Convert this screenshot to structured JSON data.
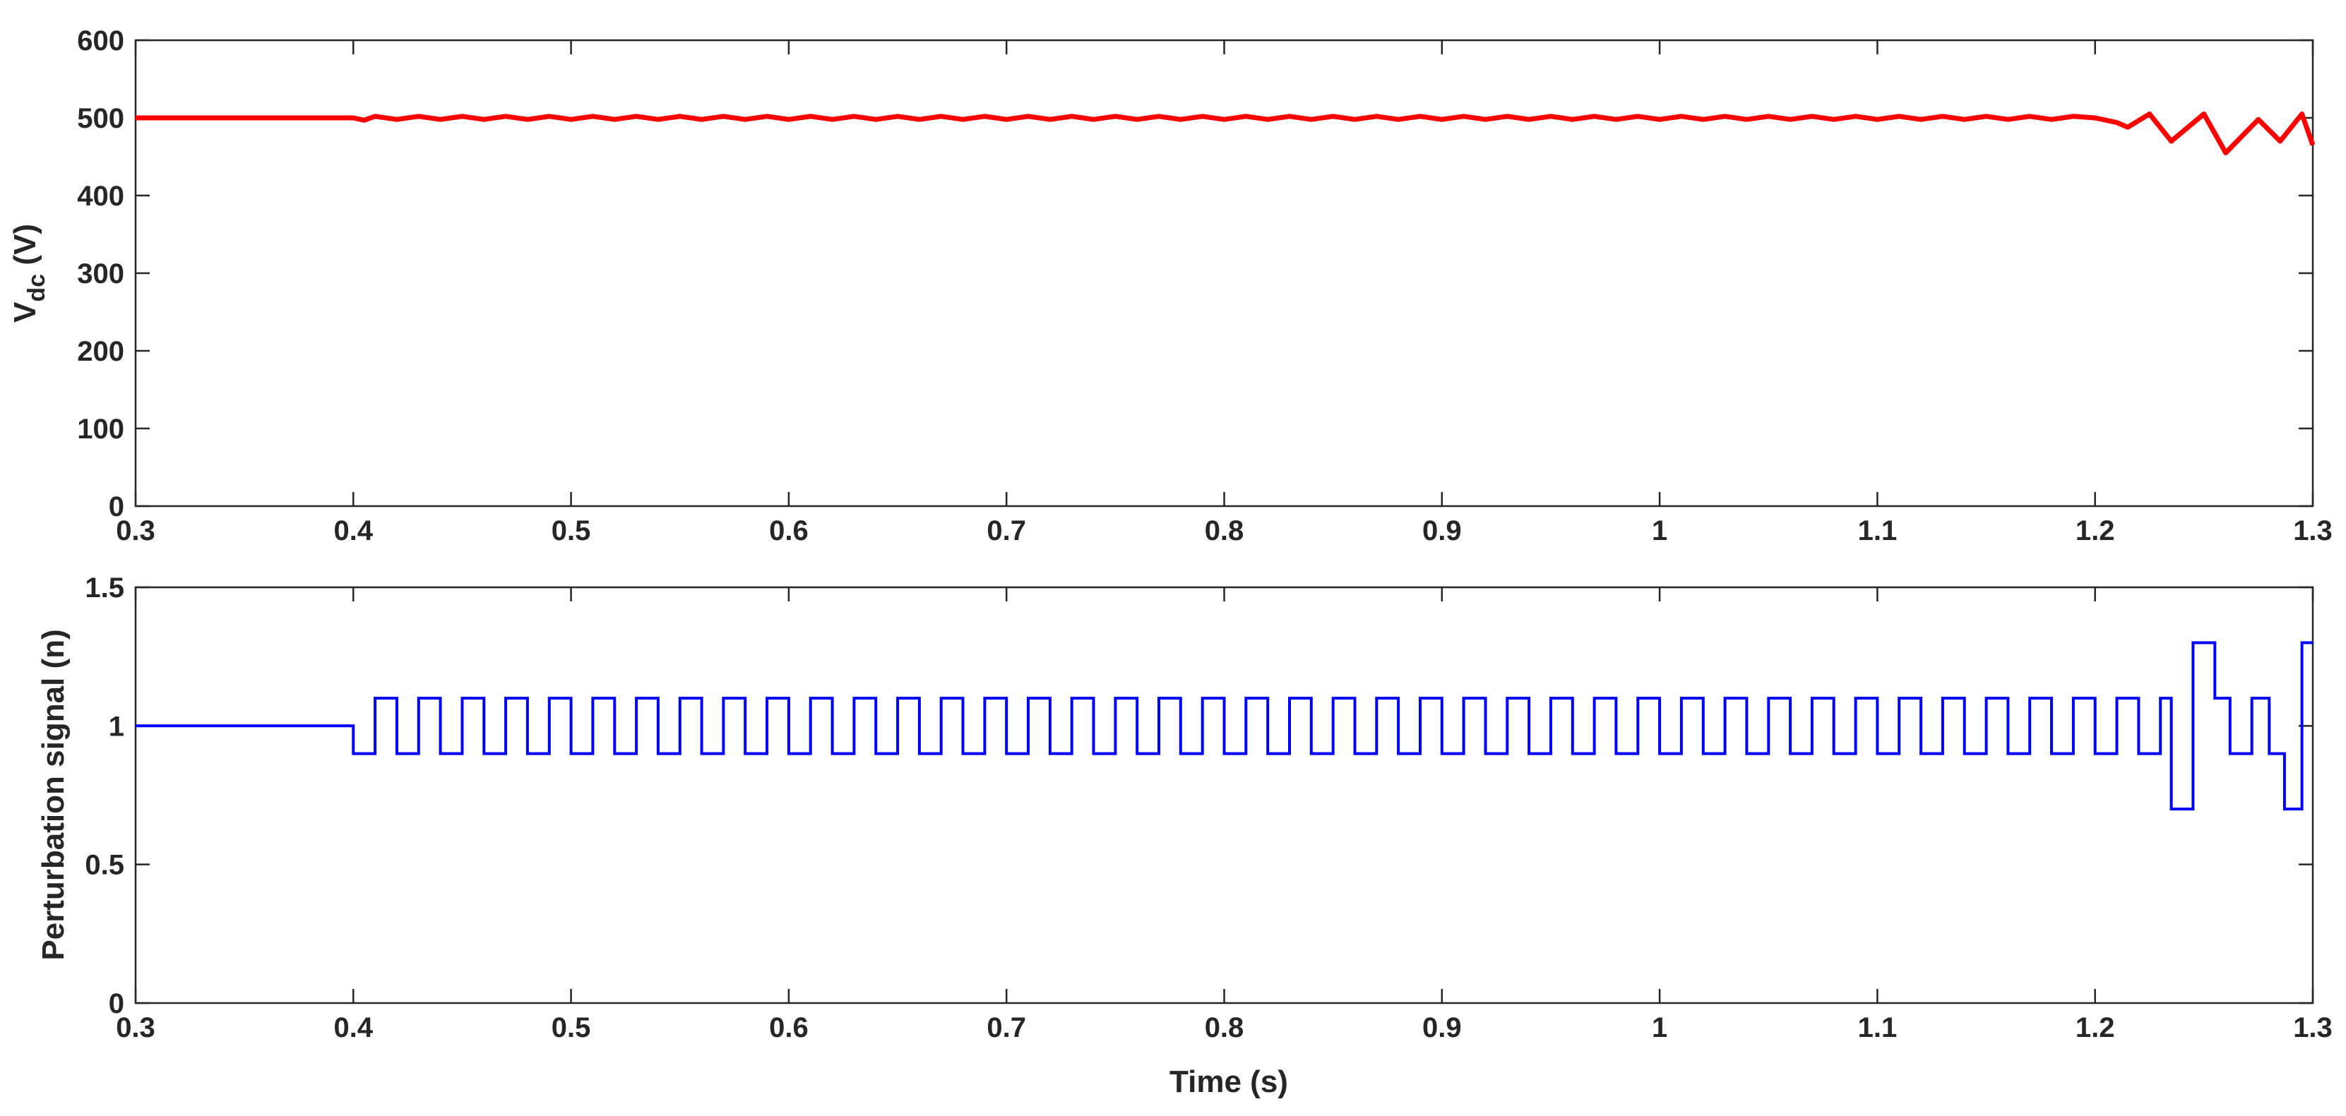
{
  "chart_data": [
    {
      "type": "line",
      "title": "",
      "xlabel": "",
      "ylabel": {
        "main": "V",
        "sub": "dc",
        "unit": " (V)"
      },
      "xlim": [
        0.3,
        1.3
      ],
      "ylim": [
        0,
        600
      ],
      "x_ticks": [
        "0.3",
        "0.4",
        "0.5",
        "0.6",
        "0.7",
        "0.8",
        "0.9",
        "1",
        "1.1",
        "1.2",
        "1.3"
      ],
      "y_ticks": [
        "0",
        "100",
        "200",
        "300",
        "400",
        "500",
        "600"
      ],
      "grid": false,
      "line_color": "#ff0000",
      "series": [
        {
          "x": [
            0.3,
            0.4,
            0.405,
            0.41,
            0.42,
            0.43,
            0.44,
            0.45,
            0.46,
            0.47,
            0.48,
            0.49,
            0.5,
            0.51,
            0.52,
            0.53,
            0.54,
            0.55,
            0.56,
            0.57,
            0.58,
            0.59,
            0.6,
            0.61,
            0.62,
            0.63,
            0.64,
            0.65,
            0.66,
            0.67,
            0.68,
            0.69,
            0.7,
            0.71,
            0.72,
            0.73,
            0.74,
            0.75,
            0.76,
            0.77,
            0.78,
            0.79,
            0.8,
            0.81,
            0.82,
            0.83,
            0.84,
            0.85,
            0.86,
            0.87,
            0.88,
            0.89,
            0.9,
            0.91,
            0.92,
            0.93,
            0.94,
            0.95,
            0.96,
            0.97,
            0.98,
            0.99,
            1.0,
            1.01,
            1.02,
            1.03,
            1.04,
            1.05,
            1.06,
            1.07,
            1.08,
            1.09,
            1.1,
            1.11,
            1.12,
            1.13,
            1.14,
            1.15,
            1.16,
            1.17,
            1.18,
            1.19,
            1.2,
            1.21,
            1.215,
            1.225,
            1.235,
            1.25,
            1.26,
            1.275,
            1.285,
            1.295,
            1.3
          ],
          "y": [
            500,
            500,
            497,
            502,
            498,
            502,
            498,
            502,
            498,
            502,
            498,
            502,
            498,
            502,
            498,
            502,
            498,
            502,
            498,
            502,
            498,
            502,
            498,
            502,
            498,
            502,
            498,
            502,
            498,
            502,
            498,
            502,
            498,
            502,
            498,
            502,
            498,
            502,
            498,
            502,
            498,
            502,
            498,
            502,
            498,
            502,
            498,
            502,
            498,
            502,
            498,
            502,
            498,
            502,
            498,
            502,
            498,
            502,
            498,
            502,
            498,
            502,
            498,
            502,
            498,
            502,
            498,
            502,
            498,
            502,
            498,
            502,
            498,
            502,
            498,
            502,
            498,
            502,
            498,
            502,
            498,
            502,
            500,
            494,
            488,
            505,
            470,
            505,
            455,
            498,
            470,
            505,
            465
          ]
        }
      ]
    },
    {
      "type": "line",
      "title": "",
      "xlabel": "Time (s)",
      "ylabel": "Perturbation signal (n)",
      "xlim": [
        0.3,
        1.3
      ],
      "ylim": [
        0,
        1.5
      ],
      "x_ticks": [
        "0.3",
        "0.4",
        "0.5",
        "0.6",
        "0.7",
        "0.8",
        "0.9",
        "1",
        "1.1",
        "1.2",
        "1.3"
      ],
      "y_ticks": [
        "0",
        "0.5",
        "1",
        "1.5"
      ],
      "grid": false,
      "line_color": "#0000ff",
      "step": {
        "initial_value": 1,
        "start": 0.4,
        "square_wave_end": 1.235,
        "period": 0.02,
        "low": 0.9,
        "high": 1.1
      },
      "tail": [
        [
          1.235,
          0.7
        ],
        [
          1.245,
          1.3
        ],
        [
          1.255,
          1.1
        ],
        [
          1.262,
          0.9
        ],
        [
          1.272,
          1.1
        ],
        [
          1.28,
          0.9
        ],
        [
          1.287,
          0.7
        ],
        [
          1.295,
          1.3
        ],
        [
          1.3,
          1.3
        ]
      ]
    }
  ]
}
